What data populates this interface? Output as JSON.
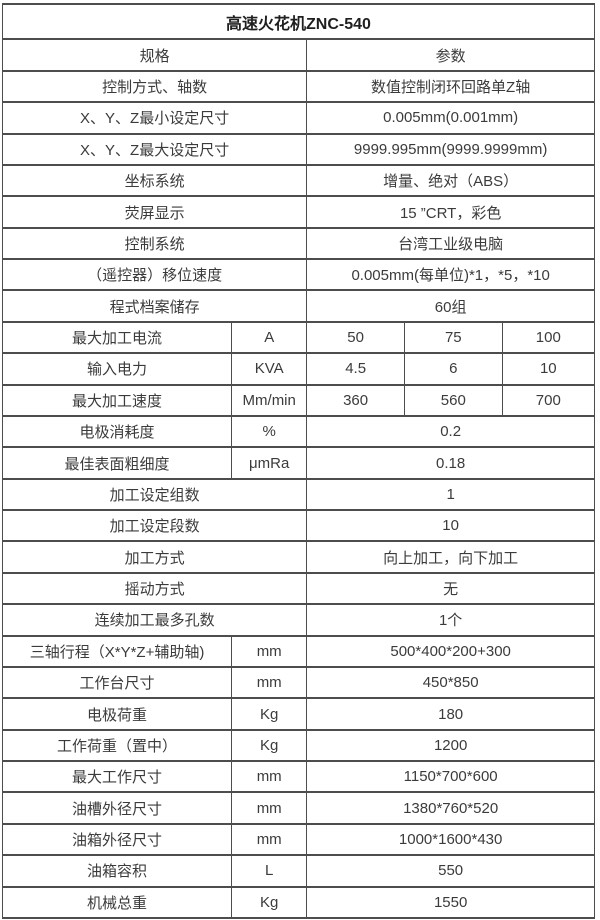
{
  "title": "高速火花机ZNC-540",
  "colors": {
    "background": "#ffffff",
    "border": "#4d4d4d",
    "text": "#3b3b3b"
  },
  "table": {
    "column_widths_percent": [
      38.7,
      12.7,
      16.5,
      16.5,
      15.6
    ],
    "rows": [
      {
        "kind": "title",
        "cells": [
          {
            "text": "高速火花机ZNC-540",
            "span": 5
          }
        ]
      },
      {
        "kind": "header",
        "cells": [
          {
            "text": "规格",
            "span": 2
          },
          {
            "text": "参数",
            "span": 3
          }
        ]
      },
      {
        "kind": "pair",
        "cells": [
          {
            "text": "控制方式、轴数",
            "span": 2
          },
          {
            "text": "数值控制闭环回路单Z轴",
            "span": 3
          }
        ]
      },
      {
        "kind": "pair",
        "cells": [
          {
            "text": "X、Y、Z最小设定尺寸",
            "span": 2
          },
          {
            "text": "0.005mm(0.001mm)",
            "span": 3
          }
        ]
      },
      {
        "kind": "pair",
        "cells": [
          {
            "text": "X、Y、Z最大设定尺寸",
            "span": 2
          },
          {
            "text": "9999.995mm(9999.9999mm)",
            "span": 3
          }
        ]
      },
      {
        "kind": "pair",
        "cells": [
          {
            "text": "坐标系统",
            "span": 2
          },
          {
            "text": "增量、绝对（ABS）",
            "span": 3
          }
        ]
      },
      {
        "kind": "pair",
        "cells": [
          {
            "text": "荧屏显示",
            "span": 2
          },
          {
            "text": "15 ”CRT，彩色",
            "span": 3
          }
        ]
      },
      {
        "kind": "pair",
        "cells": [
          {
            "text": "控制系统",
            "span": 2
          },
          {
            "text": "台湾工业级电脑",
            "span": 3
          }
        ]
      },
      {
        "kind": "pair",
        "cells": [
          {
            "text": "（遥控器）移位速度",
            "span": 2
          },
          {
            "text": "0.005mm(每单位)*1，*5，*10",
            "span": 3
          }
        ]
      },
      {
        "kind": "pair",
        "cells": [
          {
            "text": "程式档案储存",
            "span": 2
          },
          {
            "text": "60组",
            "span": 3
          }
        ]
      },
      {
        "kind": "multi",
        "cells": [
          {
            "text": "最大加工电流",
            "span": 1
          },
          {
            "text": "A",
            "span": 1
          },
          {
            "text": "50",
            "span": 1
          },
          {
            "text": "75",
            "span": 1
          },
          {
            "text": "100",
            "span": 1
          }
        ]
      },
      {
        "kind": "multi",
        "cells": [
          {
            "text": "输入电力",
            "span": 1
          },
          {
            "text": "KVA",
            "span": 1
          },
          {
            "text": "4.5",
            "span": 1
          },
          {
            "text": "6",
            "span": 1
          },
          {
            "text": "10",
            "span": 1
          }
        ]
      },
      {
        "kind": "multi",
        "cells": [
          {
            "text": "最大加工速度",
            "span": 1
          },
          {
            "text": "Mm/min",
            "span": 1
          },
          {
            "text": "360",
            "span": 1
          },
          {
            "text": "560",
            "span": 1
          },
          {
            "text": "700",
            "span": 1
          }
        ]
      },
      {
        "kind": "unit",
        "cells": [
          {
            "text": "电极消耗度",
            "span": 1
          },
          {
            "text": "%",
            "span": 1
          },
          {
            "text": "0.2",
            "span": 3
          }
        ]
      },
      {
        "kind": "unit",
        "cells": [
          {
            "text": "最佳表面粗细度",
            "span": 1
          },
          {
            "text": "μmRa",
            "span": 1
          },
          {
            "text": "0.18",
            "span": 3
          }
        ]
      },
      {
        "kind": "pair",
        "cells": [
          {
            "text": "加工设定组数",
            "span": 2
          },
          {
            "text": "1",
            "span": 3
          }
        ]
      },
      {
        "kind": "pair",
        "cells": [
          {
            "text": "加工设定段数",
            "span": 2
          },
          {
            "text": "10",
            "span": 3
          }
        ]
      },
      {
        "kind": "pair",
        "cells": [
          {
            "text": "加工方式",
            "span": 2
          },
          {
            "text": "向上加工，向下加工",
            "span": 3
          }
        ]
      },
      {
        "kind": "pair",
        "cells": [
          {
            "text": "摇动方式",
            "span": 2
          },
          {
            "text": "无",
            "span": 3
          }
        ]
      },
      {
        "kind": "pair",
        "cells": [
          {
            "text": "连续加工最多孔数",
            "span": 2
          },
          {
            "text": "1个",
            "span": 3
          }
        ]
      },
      {
        "kind": "unit",
        "cells": [
          {
            "text": "三轴行程（X*Y*Z+辅助轴)",
            "span": 1
          },
          {
            "text": "mm",
            "span": 1
          },
          {
            "text": "500*400*200+300",
            "span": 3
          }
        ]
      },
      {
        "kind": "unit",
        "cells": [
          {
            "text": "工作台尺寸",
            "span": 1
          },
          {
            "text": "mm",
            "span": 1
          },
          {
            "text": "450*850",
            "span": 3
          }
        ]
      },
      {
        "kind": "unit",
        "cells": [
          {
            "text": "电极荷重",
            "span": 1
          },
          {
            "text": "Kg",
            "span": 1
          },
          {
            "text": "180",
            "span": 3
          }
        ]
      },
      {
        "kind": "unit",
        "cells": [
          {
            "text": "工作荷重（置中）",
            "span": 1
          },
          {
            "text": "Kg",
            "span": 1
          },
          {
            "text": "1200",
            "span": 3
          }
        ]
      },
      {
        "kind": "unit",
        "cells": [
          {
            "text": "最大工作尺寸",
            "span": 1
          },
          {
            "text": "mm",
            "span": 1
          },
          {
            "text": "1150*700*600",
            "span": 3
          }
        ]
      },
      {
        "kind": "unit",
        "cells": [
          {
            "text": "油槽外径尺寸",
            "span": 1
          },
          {
            "text": "mm",
            "span": 1
          },
          {
            "text": "1380*760*520",
            "span": 3
          }
        ]
      },
      {
        "kind": "unit",
        "cells": [
          {
            "text": "油箱外径尺寸",
            "span": 1
          },
          {
            "text": "mm",
            "span": 1
          },
          {
            "text": "1000*1600*430",
            "span": 3
          }
        ]
      },
      {
        "kind": "unit",
        "cells": [
          {
            "text": "油箱容积",
            "span": 1
          },
          {
            "text": "L",
            "span": 1
          },
          {
            "text": "550",
            "span": 3
          }
        ]
      },
      {
        "kind": "unit",
        "cells": [
          {
            "text": "机械总重",
            "span": 1
          },
          {
            "text": "Kg",
            "span": 1
          },
          {
            "text": "1550",
            "span": 3
          }
        ]
      }
    ]
  }
}
